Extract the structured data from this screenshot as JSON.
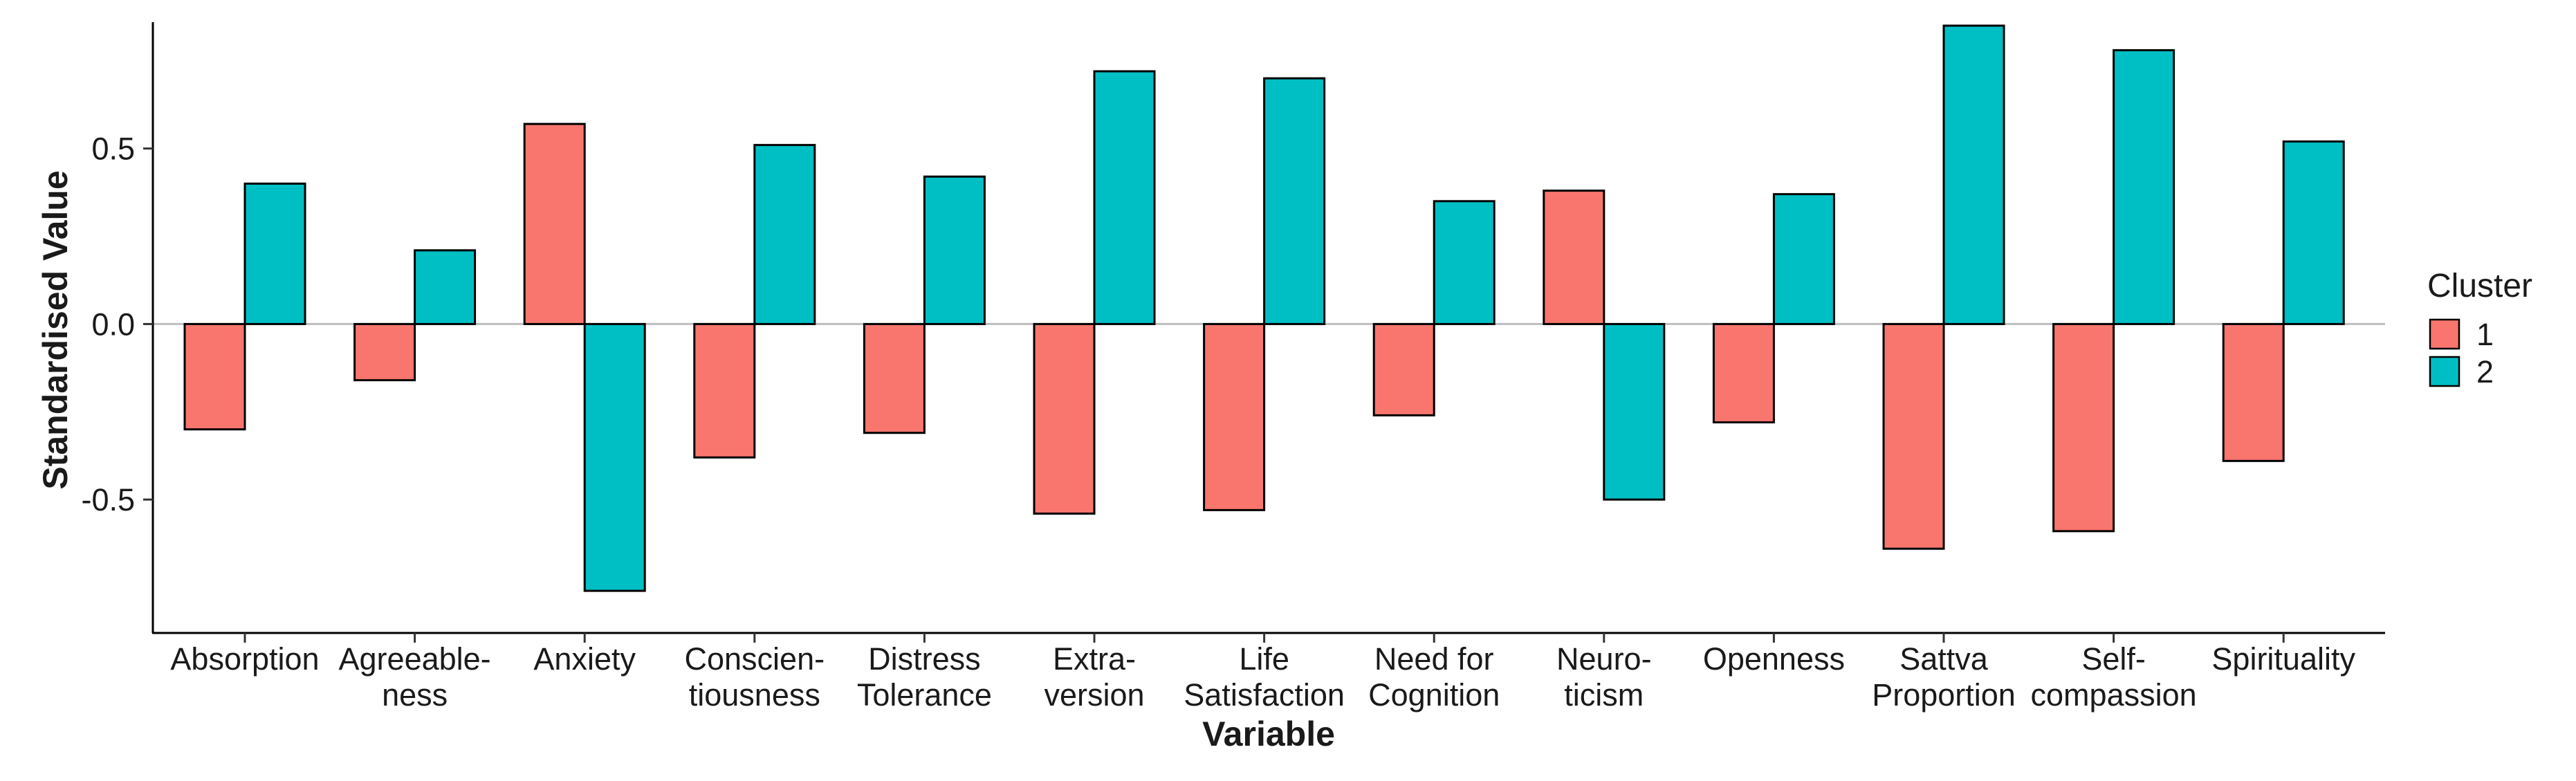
{
  "chart_data": {
    "type": "bar",
    "title": "",
    "xlabel": "Variable",
    "ylabel": "Standardised Value",
    "ylim": [
      -0.88,
      0.86
    ],
    "yticks": [
      -0.5,
      0.0,
      0.5
    ],
    "ytick_labels": [
      "-0.5",
      "0.0",
      "0.5"
    ],
    "categories": [
      [
        "Absorption"
      ],
      [
        "Agreeable-",
        "ness"
      ],
      [
        "Anxiety"
      ],
      [
        "Conscien-",
        "tiousness"
      ],
      [
        "Distress",
        "Tolerance"
      ],
      [
        "Extra-",
        "version"
      ],
      [
        "Life",
        "Satisfaction"
      ],
      [
        "Need for",
        "Cognition"
      ],
      [
        "Neuro-",
        "ticism"
      ],
      [
        "Openness"
      ],
      [
        "Sattva",
        "Proportion"
      ],
      [
        "Self-",
        "compassion"
      ],
      [
        "Spirituality"
      ]
    ],
    "series": [
      {
        "name": "1",
        "color": "#F8766D",
        "values": [
          -0.3,
          -0.16,
          0.57,
          -0.38,
          -0.31,
          -0.54,
          -0.53,
          -0.26,
          0.38,
          -0.28,
          -0.64,
          -0.59,
          -0.39
        ]
      },
      {
        "name": "2",
        "color": "#00BFC4",
        "values": [
          0.4,
          0.21,
          -0.76,
          0.51,
          0.42,
          0.72,
          0.7,
          0.35,
          -0.5,
          0.37,
          0.85,
          0.78,
          0.52
        ]
      }
    ],
    "legend": {
      "title": "Cluster",
      "position": "right"
    },
    "grid": false,
    "zero_line_color": "#BDBDBD"
  }
}
